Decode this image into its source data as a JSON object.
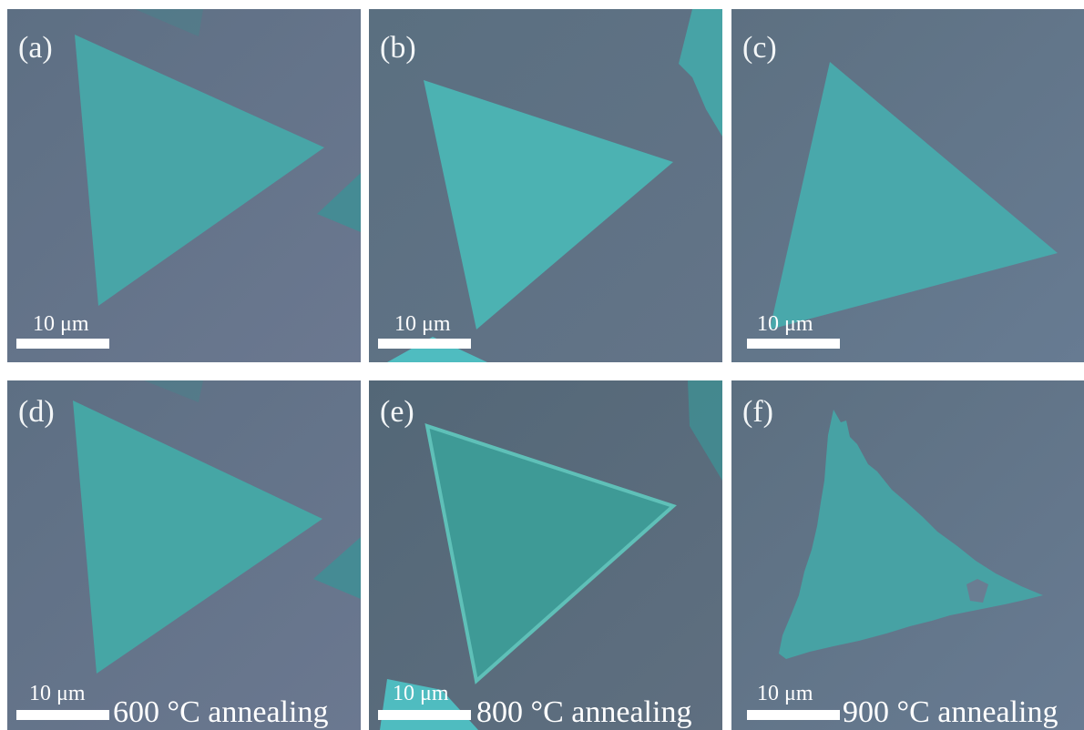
{
  "panels": [
    {
      "label": "(a)",
      "scale_bar": "10 μm",
      "caption": ""
    },
    {
      "label": "(b)",
      "scale_bar": "10 μm",
      "caption": ""
    },
    {
      "label": "(c)",
      "scale_bar": "10 μm",
      "caption": ""
    },
    {
      "label": "(d)",
      "scale_bar": "10 μm",
      "caption": "600 °C annealing"
    },
    {
      "label": "(e)",
      "scale_bar": "10 μm",
      "caption": "800 °C annealing"
    },
    {
      "label": "(f)",
      "scale_bar": "10 μm",
      "caption": "900 °C annealing"
    }
  ],
  "colors": {
    "substrate": "#5f7488",
    "flake": "#49a3a5",
    "text": "#ffffff"
  }
}
